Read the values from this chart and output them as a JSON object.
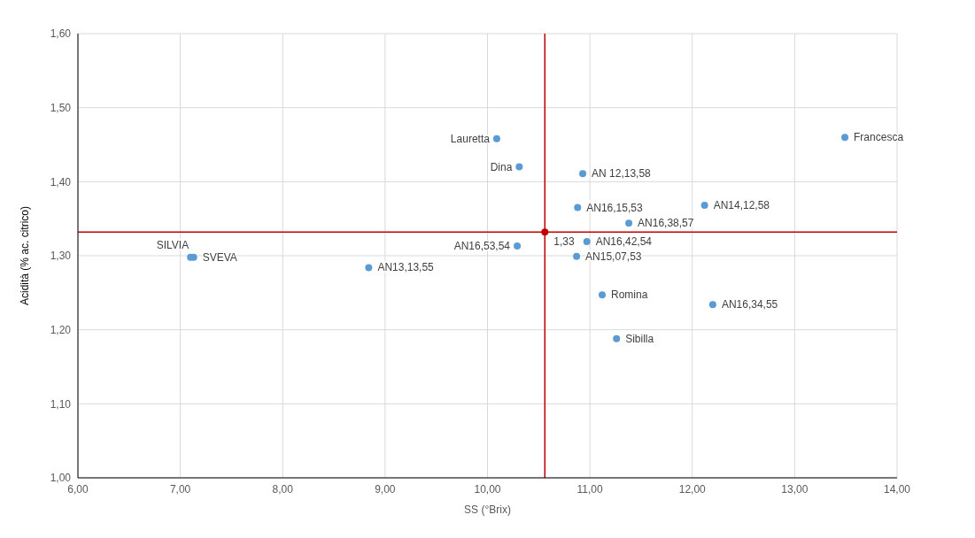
{
  "chart_data": {
    "type": "scatter",
    "xlabel": "SS (°Brix)",
    "ylabel": "Acidità (% ac. citrico)",
    "xlim": [
      6,
      14
    ],
    "ylim": [
      1,
      1.6
    ],
    "xticks": [
      {
        "value": 6,
        "label": "6,00"
      },
      {
        "value": 7,
        "label": "7,00"
      },
      {
        "value": 8,
        "label": "8,00"
      },
      {
        "value": 9,
        "label": "9,00"
      },
      {
        "value": 10,
        "label": "10,00"
      },
      {
        "value": 11,
        "label": "11,00"
      },
      {
        "value": 12,
        "label": "12,00"
      },
      {
        "value": 13,
        "label": "13,00"
      },
      {
        "value": 14,
        "label": "14,00"
      }
    ],
    "yticks": [
      {
        "value": 1,
        "label": "1,00"
      },
      {
        "value": 1.1,
        "label": "1,10"
      },
      {
        "value": 1.2,
        "label": "1,20"
      },
      {
        "value": 1.3,
        "label": "1,30"
      },
      {
        "value": 1.4,
        "label": "1,40"
      },
      {
        "value": 1.5,
        "label": "1,50"
      },
      {
        "value": 1.6,
        "label": "1,60"
      }
    ],
    "grid": true,
    "marker": "circle",
    "series": [
      {
        "color": "#5b9bd5",
        "x": [
          10.09,
          10.31,
          10.93,
          13.49,
          10.88,
          12.12,
          11.38,
          10.29,
          10.97,
          10.87,
          7.1,
          7.13,
          8.84,
          11.12,
          12.2,
          11.26
        ],
        "values": [
          1.458,
          1.42,
          1.411,
          1.46,
          1.365,
          1.368,
          1.344,
          1.313,
          1.319,
          1.299,
          1.298,
          1.298,
          1.284,
          1.247,
          1.234,
          1.188
        ],
        "value_labels": [
          "Lauretta",
          "Dina",
          "AN 12,13,58",
          "Francesca",
          "AN16,15,53",
          "AN14,12,58",
          "AN16,38,57",
          "AN16,53,54",
          "AN16,42,54",
          "AN15,07,53",
          "SILVIA",
          "SVEVA",
          "AN13,13,55",
          "Romina",
          "AN16,34,55",
          "Sibilla"
        ]
      },
      {
        "color": "#c00000",
        "x": [
          10.56
        ],
        "values": [
          1.332
        ],
        "value_labels": [
          "1,33"
        ]
      }
    ],
    "ref_lines": [
      {
        "axis": "x",
        "value": 10.56,
        "color": "#c00000"
      },
      {
        "axis": "y",
        "value": 1.332,
        "color": "#c00000"
      }
    ]
  }
}
